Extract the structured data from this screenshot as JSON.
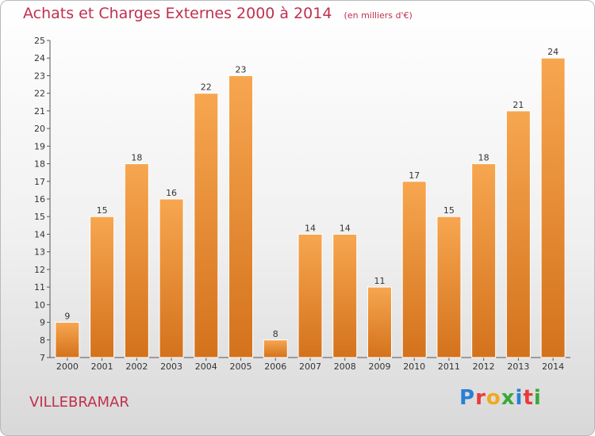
{
  "header": {
    "title": "Achats et Charges Externes 2000 à 2014",
    "subtitle": "(en milliers d'€)"
  },
  "footer": {
    "commune": "VILLEBRAMAR",
    "logo_letters": [
      {
        "ch": "P",
        "color": "#2a7fd4"
      },
      {
        "ch": "r",
        "color": "#e83a3a"
      },
      {
        "ch": "o",
        "color": "#f2a81d"
      },
      {
        "ch": "x",
        "color": "#3aa83a"
      },
      {
        "ch": "i",
        "color": "#2a7fd4"
      },
      {
        "ch": "t",
        "color": "#e83a3a"
      },
      {
        "ch": "i",
        "color": "#3aa83a"
      }
    ]
  },
  "chart_data": {
    "type": "bar",
    "categories": [
      "2000",
      "2001",
      "2002",
      "2003",
      "2004",
      "2005",
      "2006",
      "2007",
      "2008",
      "2009",
      "2010",
      "2011",
      "2012",
      "2013",
      "2014"
    ],
    "values": [
      9,
      15,
      18,
      16,
      22,
      23,
      8,
      14,
      14,
      11,
      17,
      15,
      18,
      21,
      24
    ],
    "ylim": [
      7,
      25
    ],
    "yticks": [
      7,
      8,
      9,
      10,
      11,
      12,
      13,
      14,
      15,
      16,
      17,
      18,
      19,
      20,
      21,
      22,
      23,
      24,
      25
    ],
    "grid": false,
    "bar_color_light": "#f7a650",
    "bar_color_dark": "#d4721c"
  }
}
